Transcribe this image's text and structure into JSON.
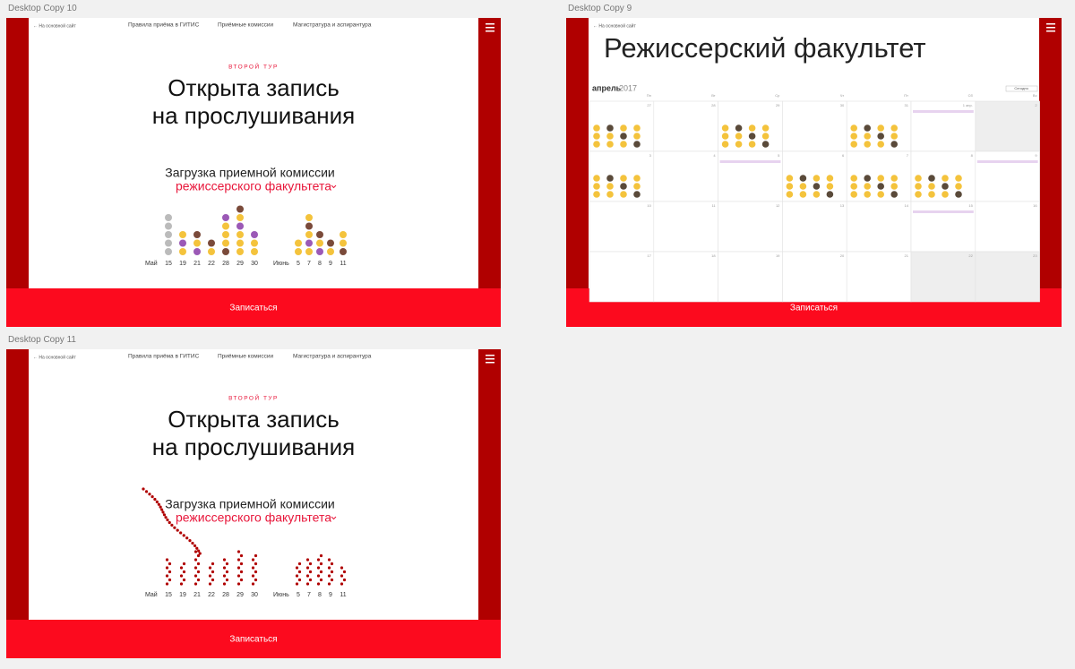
{
  "artboards": [
    {
      "label": "Desktop Copy 10",
      "back_link": "← На основной сайт",
      "nav": [
        "Правила приёма в ГИТИС",
        "Приёмные комиссии",
        "Магистратура и аспирантура"
      ],
      "eyebrow": "ВТОРОЙ ТУР",
      "heading": [
        "Открыта запись",
        "на прослушивания"
      ],
      "load_title": "Загрузка приемной комиссии",
      "load_link": "режиссерского факультета",
      "months": [
        {
          "label": "Май",
          "days": [
            15,
            19,
            21,
            22,
            28,
            29,
            30
          ],
          "counts": [
            5,
            3,
            3,
            2,
            5,
            6,
            3
          ]
        },
        {
          "label": "Июнь",
          "days": [
            5,
            7,
            8,
            9,
            11
          ],
          "counts": [
            2,
            5,
            3,
            2,
            3
          ]
        }
      ],
      "button": "Записаться"
    },
    {
      "label": "Desktop Copy 9",
      "back_link": "← На основной сайт",
      "title": "Режиссерский факультет",
      "month": "апрель",
      "year": "2017",
      "today": "Сегодня",
      "weekdays": [
        "Пн",
        "Вт",
        "Ср",
        "Чт",
        "Пт",
        "Сб",
        "Вс"
      ],
      "weeks": [
        [
          27,
          28,
          29,
          30,
          31,
          "1 апр.",
          2
        ],
        [
          3,
          4,
          5,
          6,
          7,
          8,
          9
        ],
        [
          10,
          11,
          12,
          13,
          14,
          15,
          16
        ],
        [
          17,
          18,
          19,
          20,
          21,
          22,
          23
        ]
      ],
      "button": "Записаться"
    },
    {
      "label": "Desktop Copy 11",
      "back_link": "← На основной сайт",
      "nav": [
        "Правила приёма в ГИТИС",
        "Приёмные комиссии",
        "Магистратура и аспирантура"
      ],
      "eyebrow": "ВТОРОЙ ТУР",
      "heading": [
        "Открыта запись",
        "на прослушивания"
      ],
      "load_title": "Загрузка приемной комиссии",
      "load_link": "режиссерского факультета",
      "months": [
        {
          "label": "Май",
          "days": [
            15,
            19,
            21,
            22,
            28,
            29,
            30
          ],
          "counts": [
            7,
            6,
            9,
            6,
            7,
            9,
            8
          ]
        },
        {
          "label": "Июнь",
          "days": [
            5,
            7,
            8,
            9,
            11
          ],
          "counts": [
            6,
            7,
            8,
            7,
            5
          ]
        }
      ],
      "button": "Записаться"
    }
  ]
}
